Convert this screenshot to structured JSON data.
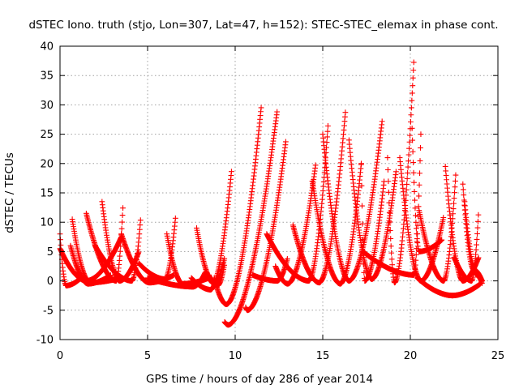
{
  "chart_data": {
    "type": "scatter",
    "title": "dSTEC Iono. truth (stjo, Lon=307, Lat=47, h=152): STEC-STEC_elemax in phase cont.",
    "xlabel": "GPS time / hours of day 286 of year 2014",
    "ylabel": "dSTEC  / TECUs",
    "xlim": [
      0,
      25
    ],
    "ylim": [
      -10,
      40
    ],
    "x_ticks": [
      0,
      5,
      10,
      15,
      20,
      25
    ],
    "y_ticks": [
      -10,
      -5,
      0,
      5,
      10,
      15,
      20,
      25,
      30,
      35,
      40
    ],
    "x_tick_labels": [
      "0",
      "5",
      "10",
      "15",
      "20",
      "25"
    ],
    "y_tick_labels": [
      "-10",
      "-5",
      "0",
      "5",
      "10",
      "15",
      "20",
      "25",
      "30",
      "35",
      "40"
    ],
    "grid": true,
    "marker": "plus",
    "color": "#ff0000",
    "arcs": [
      {
        "t0": 0.0,
        "tmin": 0.35,
        "t1": 1.2,
        "v0": 8.0,
        "vmin": -0.8,
        "v1": 0.5
      },
      {
        "t0": 0.0,
        "tmin": 1.5,
        "t1": 3.5,
        "v0": 5.5,
        "vmin": 0.0,
        "v1": 7.5
      },
      {
        "t0": 0.7,
        "tmin": 1.7,
        "t1": 3.2,
        "v0": 10.5,
        "vmin": -0.3,
        "v1": 0.3
      },
      {
        "t0": 0.6,
        "tmin": 1.6,
        "t1": 2.9,
        "v0": 6.0,
        "vmin": -0.5,
        "v1": 1.0
      },
      {
        "t0": 1.5,
        "tmin": 3.2,
        "t1": 3.6,
        "v0": 11.5,
        "vmin": 0.0,
        "v1": 13.0
      },
      {
        "t0": 2.4,
        "tmin": 3.4,
        "t1": 4.5,
        "v0": 13.5,
        "vmin": 0.0,
        "v1": 5.0
      },
      {
        "t0": 2.0,
        "tmin": 4.1,
        "t1": 4.6,
        "v0": 6.0,
        "vmin": 0.0,
        "v1": 10.5
      },
      {
        "t0": 3.5,
        "tmin": 5.1,
        "t1": 6.5,
        "v0": 8.0,
        "vmin": -0.3,
        "v1": 1.0
      },
      {
        "t0": 4.5,
        "tmin": 6.0,
        "t1": 6.6,
        "v0": 3.0,
        "vmin": 0.3,
        "v1": 11.0
      },
      {
        "t0": 6.1,
        "tmin": 7.0,
        "t1": 8.5,
        "v0": 8.0,
        "vmin": -0.5,
        "v1": 0.5
      },
      {
        "t0": 5.0,
        "tmin": 7.6,
        "t1": 8.3,
        "v0": 0.5,
        "vmin": -1.0,
        "v1": 1.5
      },
      {
        "t0": 7.8,
        "tmin": 8.8,
        "t1": 9.4,
        "v0": 9.0,
        "vmin": -0.5,
        "v1": 4.0
      },
      {
        "t0": 7.5,
        "tmin": 8.6,
        "t1": 9.8,
        "v0": 0.5,
        "vmin": -1.5,
        "v1": 19.0
      },
      {
        "t0": 8.5,
        "tmin": 9.0,
        "t1": 9.4,
        "v0": 1.0,
        "vmin": -0.8,
        "v1": 3.0
      },
      {
        "t0": 8.8,
        "tmin": 9.5,
        "t1": 11.5,
        "v0": 0.5,
        "vmin": -4.0,
        "v1": 30.0
      },
      {
        "t0": 9.4,
        "tmin": 9.6,
        "t1": 12.4,
        "v0": -7.0,
        "vmin": -7.5,
        "v1": 29.0
      },
      {
        "t0": 10.6,
        "tmin": 10.7,
        "t1": 12.9,
        "v0": -4.5,
        "vmin": -5.0,
        "v1": 24.0
      },
      {
        "t0": 11.0,
        "tmin": 12.4,
        "t1": 13.0,
        "v0": 1.0,
        "vmin": 0.0,
        "v1": 4.0
      },
      {
        "t0": 11.8,
        "tmin": 14.2,
        "t1": 15.3,
        "v0": 8.0,
        "vmin": 0.0,
        "v1": 26.5
      },
      {
        "t0": 12.3,
        "tmin": 13.0,
        "t1": 14.6,
        "v0": 2.5,
        "vmin": -0.5,
        "v1": 20.0
      },
      {
        "t0": 13.3,
        "tmin": 14.8,
        "t1": 16.3,
        "v0": 9.5,
        "vmin": -0.3,
        "v1": 29.0
      },
      {
        "t0": 14.4,
        "tmin": 16.0,
        "t1": 17.2,
        "v0": 17.0,
        "vmin": -0.5,
        "v1": 20.0
      },
      {
        "t0": 15.0,
        "tmin": 16.5,
        "t1": 18.4,
        "v0": 25.0,
        "vmin": 0.0,
        "v1": 27.5
      },
      {
        "t0": 16.5,
        "tmin": 17.8,
        "t1": 19.2,
        "v0": 24.0,
        "vmin": 0.3,
        "v1": 19.0
      },
      {
        "t0": 17.2,
        "tmin": 17.4,
        "t1": 18.5,
        "v0": 20.0,
        "vmin": 0.0,
        "v1": 17.0
      },
      {
        "t0": 18.7,
        "tmin": 19.1,
        "t1": 20.2,
        "v0": 21.0,
        "vmin": -0.3,
        "v1": 37.5
      },
      {
        "t0": 17.3,
        "tmin": 20.2,
        "t1": 20.6,
        "v0": 5.0,
        "vmin": 1.0,
        "v1": 25.0
      },
      {
        "t0": 19.4,
        "tmin": 20.6,
        "t1": 21.9,
        "v0": 21.0,
        "vmin": 0.0,
        "v1": 11.0
      },
      {
        "t0": 20.5,
        "tmin": 21.9,
        "t1": 22.6,
        "v0": 12.0,
        "vmin": 0.0,
        "v1": 18.5
      },
      {
        "t0": 20.4,
        "tmin": 22.4,
        "t1": 24.0,
        "v0": 0.5,
        "vmin": -2.5,
        "v1": -0.5
      },
      {
        "t0": 22.0,
        "tmin": 23.0,
        "t1": 23.9,
        "v0": 19.5,
        "vmin": 0.0,
        "v1": 4.0
      },
      {
        "t0": 22.5,
        "tmin": 23.5,
        "t1": 23.9,
        "v0": 4.0,
        "vmin": 0.0,
        "v1": 12.0
      },
      {
        "t0": 23.0,
        "tmin": 23.6,
        "t1": 24.1,
        "v0": 16.5,
        "vmin": 2.0,
        "v1": 0.0
      },
      {
        "t0": 23.1,
        "tmin": 23.8,
        "t1": 24.1,
        "v0": 13.5,
        "vmin": 1.0,
        "v1": -0.5
      },
      {
        "t0": 20.1,
        "tmin": 20.5,
        "t1": 21.8,
        "v0": 26.0,
        "vmin": 5.0,
        "v1": 7.0
      }
    ]
  }
}
